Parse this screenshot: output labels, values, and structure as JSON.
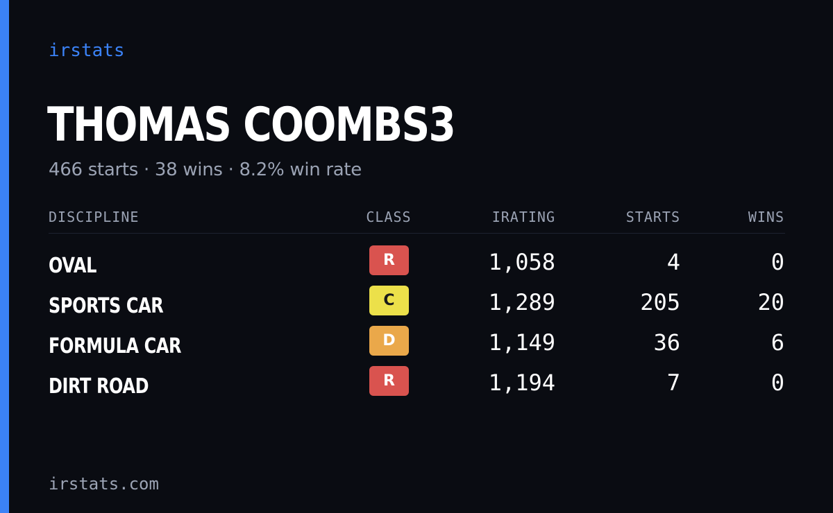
{
  "brand": "irstats",
  "driver": {
    "name": "THOMAS COOMBS3",
    "summary": "466 starts · 38 wins · 8.2% win rate"
  },
  "table": {
    "headers": {
      "discipline": "DISCIPLINE",
      "class": "CLASS",
      "irating": "IRATING",
      "starts": "STARTS",
      "wins": "WINS"
    },
    "rows": [
      {
        "discipline": "OVAL",
        "class": "R",
        "class_color": "#d9534f",
        "class_text_color": "#ffffff",
        "irating": "1,058",
        "starts": "4",
        "wins": "0"
      },
      {
        "discipline": "SPORTS CAR",
        "class": "C",
        "class_color": "#ece04a",
        "class_text_color": "#1a1a1a",
        "irating": "1,289",
        "starts": "205",
        "wins": "20"
      },
      {
        "discipline": "FORMULA CAR",
        "class": "D",
        "class_color": "#eaa84a",
        "class_text_color": "#ffffff",
        "irating": "1,149",
        "starts": "36",
        "wins": "6"
      },
      {
        "discipline": "DIRT ROAD",
        "class": "R",
        "class_color": "#d9534f",
        "class_text_color": "#ffffff",
        "irating": "1,194",
        "starts": "7",
        "wins": "0"
      }
    ]
  },
  "footer": "irstats.com",
  "colors": {
    "background": "#0a0c12",
    "accent": "#3b82f6",
    "muted_text": "#9ba3b4"
  }
}
